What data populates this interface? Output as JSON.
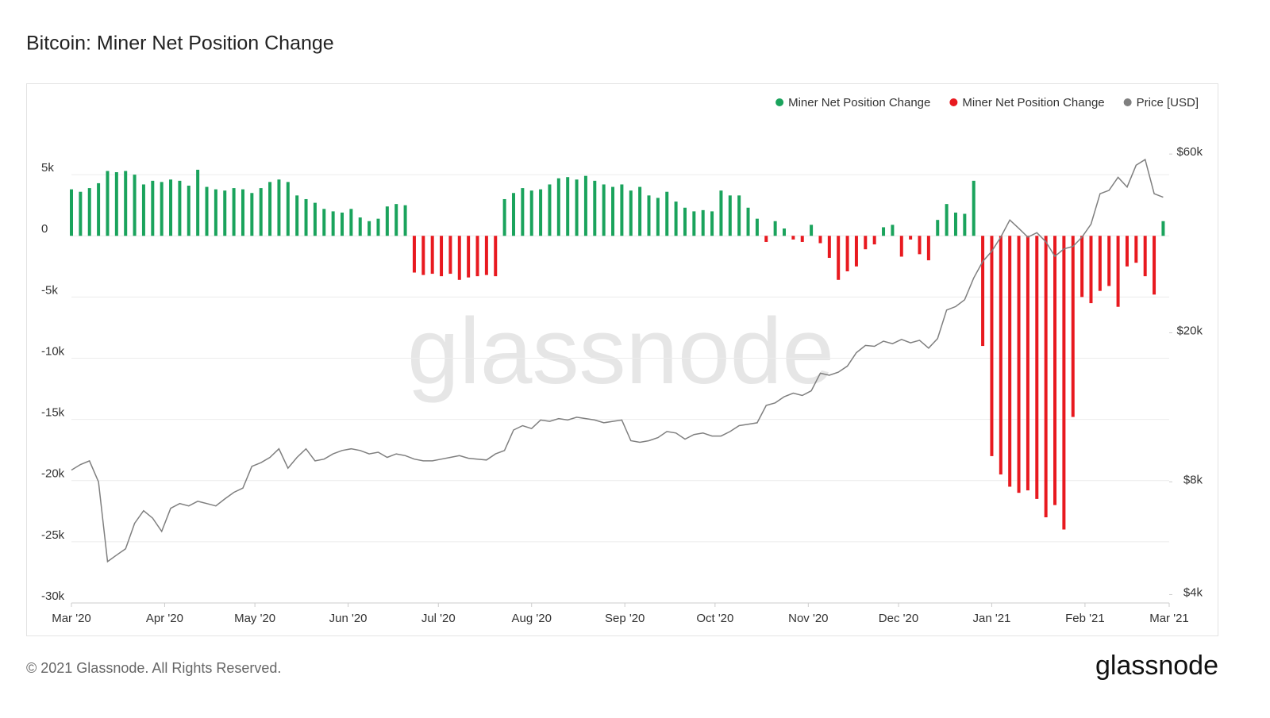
{
  "header": {
    "title": "Bitcoin: Miner Net Position Change"
  },
  "chart_data": {
    "type": "bar-line",
    "watermark": "glassnode",
    "xlim": [
      0,
      365
    ],
    "xticks": [
      {
        "value": 0,
        "label": "Mar '20"
      },
      {
        "value": 31,
        "label": "Apr '20"
      },
      {
        "value": 61,
        "label": "May '20"
      },
      {
        "value": 92,
        "label": "Jun '20"
      },
      {
        "value": 122,
        "label": "Jul '20"
      },
      {
        "value": 153,
        "label": "Aug '20"
      },
      {
        "value": 184,
        "label": "Sep '20"
      },
      {
        "value": 214,
        "label": "Oct '20"
      },
      {
        "value": 245,
        "label": "Nov '20"
      },
      {
        "value": 275,
        "label": "Dec '20"
      },
      {
        "value": 306,
        "label": "Jan '21"
      },
      {
        "value": 337,
        "label": "Feb '21"
      },
      {
        "value": 365,
        "label": "Mar '21"
      }
    ],
    "ylim": [
      -30000,
      10000
    ],
    "yticks": [
      {
        "value": 5000,
        "label": "5k"
      },
      0,
      {
        "value": -5000,
        "label": "-5k"
      },
      {
        "value": -10000,
        "label": "-10k"
      },
      {
        "value": -15000,
        "label": "-15k"
      },
      {
        "value": -20000,
        "label": "-20k"
      },
      {
        "value": -25000,
        "label": "-25k"
      },
      {
        "value": -30000,
        "label": "-30k"
      }
    ],
    "y2lim": [
      3800,
      77000
    ],
    "y2log": true,
    "y2ticks": [
      {
        "value": 4000,
        "label": "$4k"
      },
      {
        "value": 8000,
        "label": "$8k"
      },
      {
        "value": 20000,
        "label": "$20k"
      },
      {
        "value": 60000,
        "label": "$60k"
      }
    ],
    "grid": true,
    "legend": "top-right",
    "x": [
      0,
      3,
      6,
      9,
      12,
      15,
      18,
      21,
      24,
      27,
      30,
      33,
      36,
      39,
      42,
      45,
      48,
      51,
      54,
      57,
      60,
      63,
      66,
      69,
      72,
      75,
      78,
      81,
      84,
      87,
      90,
      93,
      96,
      99,
      102,
      105,
      108,
      111,
      114,
      117,
      120,
      123,
      126,
      129,
      132,
      135,
      138,
      141,
      144,
      147,
      150,
      153,
      156,
      159,
      162,
      165,
      168,
      171,
      174,
      177,
      180,
      183,
      186,
      189,
      192,
      195,
      198,
      201,
      204,
      207,
      210,
      213,
      216,
      219,
      222,
      225,
      228,
      231,
      234,
      237,
      240,
      243,
      246,
      249,
      252,
      255,
      258,
      261,
      264,
      267,
      270,
      273,
      276,
      279,
      282,
      285,
      288,
      291,
      294,
      297,
      300,
      303,
      306,
      309,
      312,
      315,
      318,
      321,
      324,
      327,
      330,
      333,
      336,
      339,
      342,
      345,
      348,
      351,
      354,
      357,
      360,
      363
    ],
    "series": [
      {
        "name": "Miner Net Position Change",
        "color": "#1aa35c",
        "kind": "bar",
        "values": [
          3800,
          3600,
          3900,
          4300,
          5300,
          5200,
          5300,
          5000,
          4200,
          4500,
          4400,
          4600,
          4500,
          4100,
          5400,
          4000,
          3800,
          3700,
          3900,
          3800,
          3500,
          3900,
          4400,
          4600,
          4400,
          3300,
          3000,
          2700,
          2200,
          2000,
          1900,
          2200,
          1500,
          1200,
          1400,
          2400,
          2600,
          2500,
          null,
          null,
          null,
          null,
          null,
          null,
          null,
          null,
          null,
          null,
          3000,
          3500,
          3900,
          3700,
          3800,
          4200,
          4700,
          4800,
          4600,
          4900,
          4500,
          4200,
          4000,
          4200,
          3700,
          4000,
          3300,
          3100,
          3600,
          2800,
          2300,
          2000,
          2100,
          2000,
          3700,
          3300,
          3300,
          2300,
          1400,
          null,
          1200,
          600,
          null,
          null,
          900,
          null,
          null,
          null,
          null,
          null,
          null,
          null,
          700,
          900,
          null,
          null,
          null,
          null,
          1300,
          2600,
          1900,
          1800,
          4500,
          null,
          null,
          null,
          null,
          null,
          null,
          null,
          null,
          null,
          null,
          null,
          null,
          null,
          null,
          null,
          null,
          null,
          null,
          null,
          null,
          1200
        ]
      },
      {
        "name": "Miner Net Position Change",
        "color": "#e8191f",
        "kind": "bar",
        "values": [
          null,
          null,
          null,
          null,
          null,
          null,
          null,
          null,
          null,
          null,
          null,
          null,
          null,
          null,
          null,
          null,
          null,
          null,
          null,
          null,
          null,
          null,
          null,
          null,
          null,
          null,
          null,
          null,
          null,
          null,
          null,
          null,
          null,
          null,
          null,
          null,
          null,
          null,
          -3000,
          -3200,
          -3100,
          -3300,
          -3100,
          -3600,
          -3400,
          -3300,
          -3200,
          -3300,
          null,
          null,
          null,
          null,
          null,
          null,
          null,
          null,
          null,
          null,
          null,
          null,
          null,
          null,
          null,
          null,
          null,
          null,
          null,
          null,
          null,
          null,
          null,
          null,
          null,
          null,
          null,
          null,
          null,
          -500,
          null,
          null,
          -300,
          -500,
          null,
          -600,
          -1800,
          -3600,
          -2900,
          -2500,
          -1100,
          -700,
          null,
          null,
          -1700,
          -300,
          -1500,
          -2000,
          null,
          null,
          null,
          null,
          null,
          -9000,
          -18000,
          -19500,
          -20500,
          -21000,
          -20800,
          -21500,
          -23000,
          -22000,
          -24000,
          -14800,
          -5000,
          -5500,
          -4500,
          -4100,
          -5800,
          -2500,
          -2200,
          -3300,
          -4800,
          null
        ]
      },
      {
        "name": "Price [USD]",
        "color": "#7f7f7f",
        "kind": "line",
        "axis": "y2",
        "values": [
          8600,
          8900,
          9100,
          8000,
          4900,
          5100,
          5300,
          6200,
          6700,
          6400,
          5900,
          6800,
          7000,
          6900,
          7100,
          7000,
          6900,
          7200,
          7500,
          7700,
          8800,
          9000,
          9300,
          9800,
          8700,
          9300,
          9800,
          9100,
          9200,
          9500,
          9700,
          9800,
          9700,
          9500,
          9600,
          9300,
          9500,
          9400,
          9200,
          9100,
          9100,
          9200,
          9300,
          9400,
          9250,
          9200,
          9150,
          9500,
          9700,
          11000,
          11300,
          11100,
          11700,
          11600,
          11800,
          11700,
          11900,
          11800,
          11700,
          11500,
          11600,
          11700,
          10300,
          10200,
          10300,
          10500,
          10900,
          10800,
          10400,
          10700,
          10800,
          10600,
          10600,
          10900,
          11300,
          11400,
          11500,
          12800,
          13000,
          13500,
          13800,
          13600,
          14000,
          15600,
          15400,
          15700,
          16300,
          17700,
          18500,
          18400,
          19000,
          18700,
          19200,
          18800,
          19100,
          18200,
          19300,
          23000,
          23500,
          24500,
          28000,
          31000,
          33000,
          36000,
          40000,
          38000,
          36000,
          37000,
          35000,
          32000,
          33500,
          34000,
          36000,
          39000,
          47000,
          48000,
          52000,
          49000,
          56000,
          58000,
          47000,
          46000
        ]
      }
    ]
  },
  "footer": {
    "copyright": "© 2021 Glassnode. All Rights Reserved.",
    "logo": "glassnode"
  }
}
